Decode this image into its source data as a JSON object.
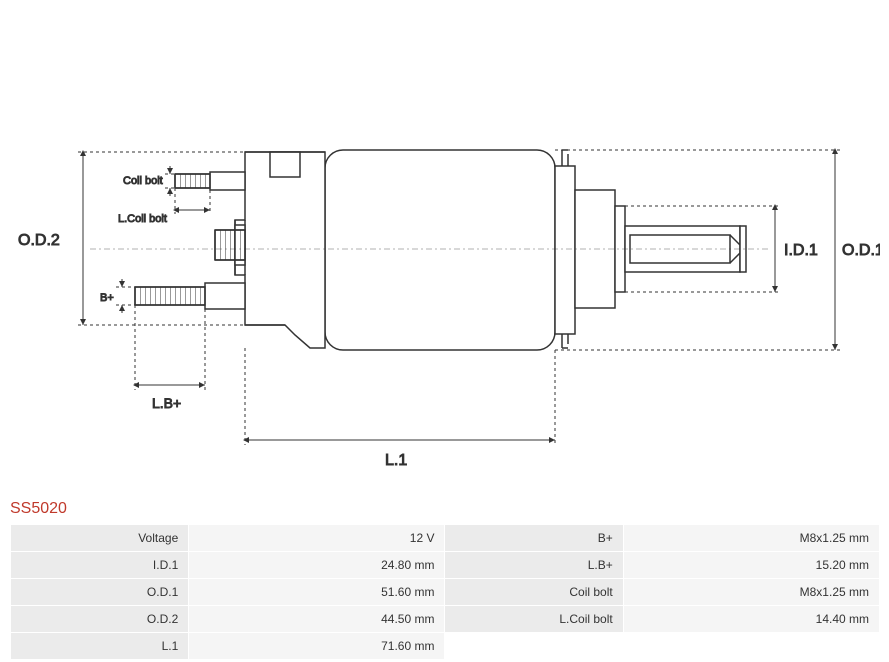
{
  "part_number": "SS5020",
  "diagram": {
    "labels": {
      "od2": "O.D.2",
      "od1": "O.D.1",
      "id1": "I.D.1",
      "l1": "L.1",
      "lbplus": "L.B+",
      "bplus": "B+",
      "coil_bolt": "Coil bolt",
      "l_coil_bolt": "L.Coil bolt"
    },
    "stroke_color": "#333333",
    "stroke_width": 1.5,
    "dash_pattern": "3,3"
  },
  "specs": {
    "rows": [
      {
        "label1": "Voltage",
        "value1": "12 V",
        "label2": "B+",
        "value2": "M8x1.25 mm"
      },
      {
        "label1": "I.D.1",
        "value1": "24.80 mm",
        "label2": "L.B+",
        "value2": "15.20 mm"
      },
      {
        "label1": "O.D.1",
        "value1": "51.60 mm",
        "label2": "Coil bolt",
        "value2": "M8x1.25 mm"
      },
      {
        "label1": "O.D.2",
        "value1": "44.50 mm",
        "label2": "L.Coil bolt",
        "value2": "14.40 mm"
      },
      {
        "label1": "L.1",
        "value1": "71.60 mm",
        "label2": "",
        "value2": ""
      }
    ]
  }
}
